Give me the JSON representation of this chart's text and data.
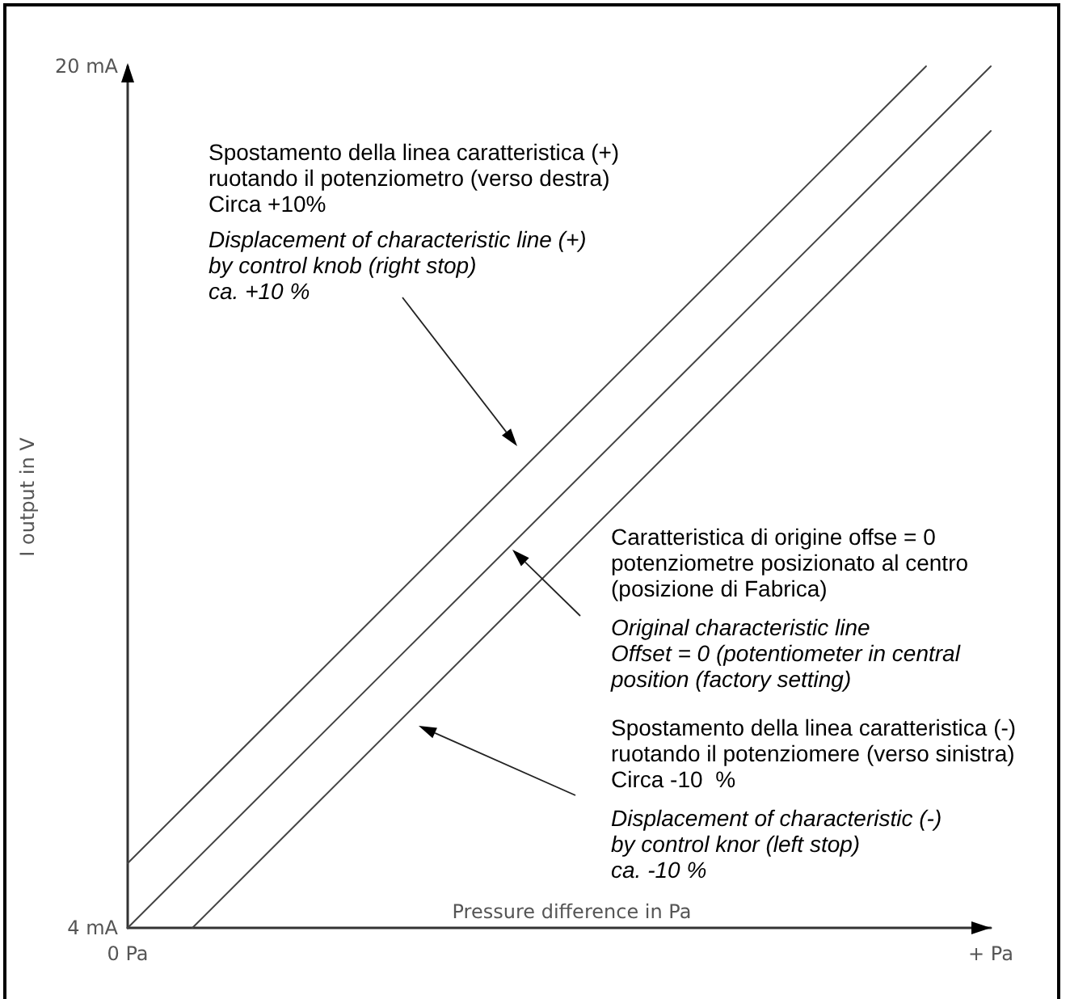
{
  "chart_data": {
    "type": "line",
    "xlabel": "Pressure difference in Pa",
    "ylabel": "I output in V",
    "categories": [
      "0 Pa",
      null,
      null,
      null,
      null,
      null,
      null,
      null,
      null,
      null,
      null,
      null,
      null,
      null,
      null,
      null,
      null,
      null,
      null,
      null,
      null,
      null,
      null,
      null,
      null,
      null,
      null,
      null,
      null,
      null,
      null,
      null,
      null,
      null,
      null,
      null,
      null,
      null,
      null,
      null,
      "+ Pa"
    ],
    "ylim": [
      4,
      20
    ],
    "yticks": [
      {
        "value": 4,
        "label": "4 mA"
      },
      {
        "value": 20,
        "label": "20 mA"
      }
    ],
    "grid": false,
    "marker": "none",
    "line_style": "solid",
    "series": [
      {
        "color": "#444444",
        "values": [
          5.2,
          null,
          null,
          null,
          null,
          null,
          null,
          null,
          null,
          null,
          null,
          null,
          null,
          null,
          null,
          null,
          null,
          null,
          null,
          null,
          null,
          null,
          null,
          null,
          null,
          null,
          null,
          null,
          null,
          null,
          null,
          null,
          null,
          null,
          null,
          null,
          null,
          20,
          null,
          null,
          null
        ]
      },
      {
        "color": "#444444",
        "values": [
          4,
          null,
          null,
          null,
          null,
          null,
          null,
          null,
          null,
          null,
          null,
          null,
          null,
          null,
          null,
          null,
          null,
          null,
          null,
          null,
          null,
          null,
          null,
          null,
          null,
          null,
          null,
          null,
          null,
          null,
          null,
          null,
          null,
          null,
          null,
          null,
          null,
          null,
          null,
          null,
          20
        ]
      },
      {
        "color": "#444444",
        "values": [
          null,
          null,
          null,
          4,
          null,
          null,
          null,
          null,
          null,
          null,
          null,
          null,
          null,
          null,
          null,
          null,
          null,
          null,
          null,
          null,
          null,
          null,
          null,
          null,
          null,
          null,
          null,
          null,
          null,
          null,
          null,
          null,
          null,
          null,
          null,
          null,
          null,
          null,
          null,
          null,
          18.8
        ]
      }
    ],
    "annotations": [
      "Spostamento della linea caratteristica (+)\nruotando il potenziometro (verso destra)\nCirca +10%",
      "Displacement of characteristic line (+)\nby control knob (right stop)\nca. +10 %",
      "Caratteristica di origine offse = 0\npotenziometre posizionato al centro\n(posizione di Fabrica)",
      "Original characteristic line\nOffset = 0 (potentiometer in central\nposition (factory setting)",
      "Spostamento della linea caratteristica (-)\nruotando il potenziomere (verso sinistra)\nCirca -10  %",
      "Displacement of characteristic (-)\nby control knor (left stop)\nca. -10 %"
    ]
  }
}
